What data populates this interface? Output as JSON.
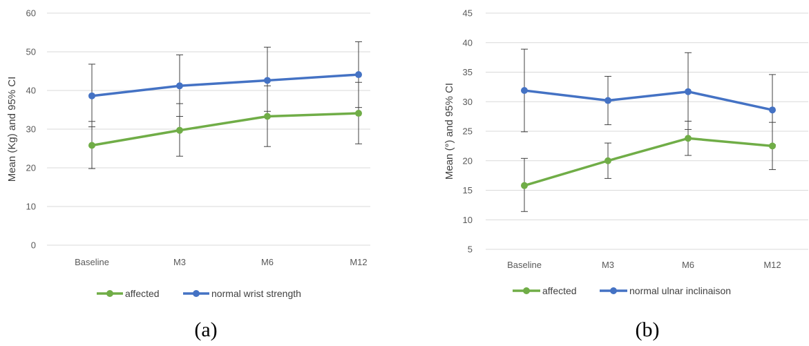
{
  "chart_data": [
    {
      "type": "line",
      "panel_label": "(a)",
      "title": "",
      "xlabel": "",
      "ylabel": "Mean (Kg) and 95% CI",
      "categories": [
        "Baseline",
        "M3",
        "M6",
        "M12"
      ],
      "ylim": [
        0,
        60
      ],
      "yticks": [
        0,
        10,
        20,
        30,
        40,
        50,
        60
      ],
      "grid": true,
      "legend": "bottom",
      "series": [
        {
          "name": "affected",
          "color": "#70ad47",
          "values": [
            25.8,
            29.7,
            33.3,
            34.1
          ],
          "ci_low": [
            19.8,
            23.0,
            25.5,
            26.2
          ],
          "ci_high": [
            32.0,
            36.6,
            41.2,
            42.1
          ]
        },
        {
          "name": "normal wrist strength",
          "color": "#4472c4",
          "values": [
            38.6,
            41.2,
            42.6,
            44.1
          ],
          "ci_low": [
            30.6,
            33.3,
            34.6,
            35.6
          ],
          "ci_high": [
            46.8,
            49.2,
            51.2,
            52.6
          ]
        }
      ]
    },
    {
      "type": "line",
      "panel_label": "(b)",
      "title": "",
      "xlabel": "",
      "ylabel": "Mean (°) and 95% CI",
      "categories": [
        "Baseline",
        "M3",
        "M6",
        "M12"
      ],
      "ylim": [
        5,
        45
      ],
      "yticks": [
        5,
        10,
        15,
        20,
        25,
        30,
        35,
        40,
        45
      ],
      "grid": true,
      "legend": "bottom",
      "series": [
        {
          "name": "affected",
          "color": "#70ad47",
          "values": [
            15.8,
            20.0,
            23.8,
            22.5
          ],
          "ci_low": [
            11.4,
            17.0,
            20.9,
            18.5
          ],
          "ci_high": [
            20.4,
            23.0,
            26.7,
            26.5
          ]
        },
        {
          "name": "normal ulnar inclinaison",
          "color": "#4472c4",
          "values": [
            31.9,
            30.2,
            31.7,
            28.6
          ],
          "ci_low": [
            24.9,
            26.1,
            25.3,
            22.7
          ],
          "ci_high": [
            38.9,
            34.3,
            38.3,
            34.6
          ]
        }
      ]
    }
  ]
}
